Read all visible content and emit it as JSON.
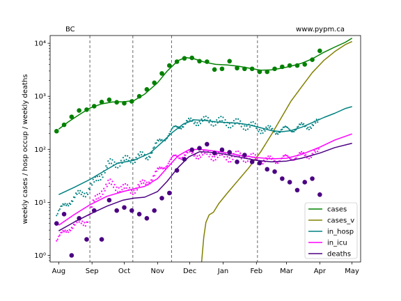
{
  "chart_data": {
    "type": "line",
    "title_left": "BC",
    "title_right": "www.pypm.ca",
    "ylabel": "weekly cases / hosp occup / weekly deaths",
    "xlabel": "",
    "yscale": "log",
    "ylim": [
      0.75,
      14000
    ],
    "xlim": [
      "2020-07-24",
      "2021-05-09"
    ],
    "x_ticks": [
      {
        "label": "Aug",
        "date": "2020-08-01"
      },
      {
        "label": "Sep",
        "date": "2020-09-01"
      },
      {
        "label": "Oct",
        "date": "2020-10-01"
      },
      {
        "label": "Nov",
        "date": "2020-11-01"
      },
      {
        "label": "Dec",
        "date": "2020-12-01"
      },
      {
        "label": "Jan",
        "date": "2021-01-01"
      },
      {
        "label": "Feb",
        "date": "2021-02-01"
      },
      {
        "label": "Mar",
        "date": "2021-03-01"
      },
      {
        "label": "Apr",
        "date": "2021-04-01"
      },
      {
        "label": "May",
        "date": "2021-05-01"
      }
    ],
    "y_ticks": [
      {
        "label": "10⁰",
        "value": 1
      },
      {
        "label": "10¹",
        "value": 10
      },
      {
        "label": "10²",
        "value": 100
      },
      {
        "label": "10³",
        "value": 1000
      },
      {
        "label": "10⁴",
        "value": 10000
      }
    ],
    "vlines": [
      "2020-08-30",
      "2020-10-09",
      "2020-11-14",
      "2021-02-02"
    ],
    "grid": false,
    "legend_position": "lower right",
    "series": [
      {
        "name": "cases",
        "color": "#008000",
        "model": [
          [
            "2020-08-01",
            240
          ],
          [
            "2020-08-10",
            330
          ],
          [
            "2020-08-20",
            450
          ],
          [
            "2020-08-30",
            600
          ],
          [
            "2020-09-10",
            720
          ],
          [
            "2020-09-20",
            780
          ],
          [
            "2020-10-01",
            790
          ],
          [
            "2020-10-10",
            830
          ],
          [
            "2020-10-20",
            1100
          ],
          [
            "2020-11-01",
            1800
          ],
          [
            "2020-11-10",
            3000
          ],
          [
            "2020-11-20",
            4700
          ],
          [
            "2020-11-27",
            5400
          ],
          [
            "2020-12-05",
            5100
          ],
          [
            "2020-12-15",
            4400
          ],
          [
            "2020-12-25",
            4000
          ],
          [
            "2021-01-05",
            3900
          ],
          [
            "2021-01-15",
            3700
          ],
          [
            "2021-01-25",
            3400
          ],
          [
            "2021-02-05",
            3100
          ],
          [
            "2021-02-15",
            3150
          ],
          [
            "2021-02-25",
            3400
          ],
          [
            "2021-03-05",
            3700
          ],
          [
            "2021-03-15",
            4200
          ],
          [
            "2021-03-25",
            5100
          ],
          [
            "2021-04-05",
            6800
          ],
          [
            "2021-04-15",
            8500
          ],
          [
            "2021-04-25",
            10500
          ],
          [
            "2021-05-01",
            12500
          ]
        ],
        "points": [
          [
            "2020-07-30",
            220
          ],
          [
            "2020-08-06",
            290
          ],
          [
            "2020-08-13",
            410
          ],
          [
            "2020-08-20",
            540
          ],
          [
            "2020-08-27",
            560
          ],
          [
            "2020-09-03",
            650
          ],
          [
            "2020-09-10",
            780
          ],
          [
            "2020-09-17",
            860
          ],
          [
            "2020-09-24",
            770
          ],
          [
            "2020-10-01",
            740
          ],
          [
            "2020-10-08",
            800
          ],
          [
            "2020-10-15",
            1000
          ],
          [
            "2020-10-22",
            1350
          ],
          [
            "2020-10-29",
            1800
          ],
          [
            "2020-11-05",
            2700
          ],
          [
            "2020-11-12",
            3800
          ],
          [
            "2020-11-19",
            4500
          ],
          [
            "2020-11-26",
            5200
          ],
          [
            "2020-12-03",
            5300
          ],
          [
            "2020-12-10",
            4600
          ],
          [
            "2020-12-17",
            4500
          ],
          [
            "2020-12-24",
            3200
          ],
          [
            "2020-12-31",
            3300
          ],
          [
            "2021-01-07",
            4600
          ],
          [
            "2021-01-14",
            3400
          ],
          [
            "2021-01-21",
            3300
          ],
          [
            "2021-01-28",
            3300
          ],
          [
            "2021-02-04",
            2900
          ],
          [
            "2021-02-11",
            2900
          ],
          [
            "2021-02-18",
            3300
          ],
          [
            "2021-02-25",
            3600
          ],
          [
            "2021-03-04",
            3800
          ],
          [
            "2021-03-11",
            3800
          ],
          [
            "2021-03-18",
            4000
          ],
          [
            "2021-03-25",
            4900
          ],
          [
            "2021-04-01",
            7200
          ]
        ]
      },
      {
        "name": "cases_v",
        "color": "#808000",
        "model": [
          [
            "2020-12-12",
            0.75
          ],
          [
            "2020-12-14",
            2.2
          ],
          [
            "2020-12-16",
            4.2
          ],
          [
            "2020-12-19",
            5.8
          ],
          [
            "2020-12-23",
            6.5
          ],
          [
            "2020-12-28",
            9.5
          ],
          [
            "2021-01-05",
            15
          ],
          [
            "2021-01-15",
            26
          ],
          [
            "2021-01-25",
            45
          ],
          [
            "2021-02-05",
            90
          ],
          [
            "2021-02-15",
            190
          ],
          [
            "2021-02-25",
            420
          ],
          [
            "2021-03-05",
            800
          ],
          [
            "2021-03-15",
            1500
          ],
          [
            "2021-03-25",
            2800
          ],
          [
            "2021-04-05",
            4800
          ],
          [
            "2021-04-15",
            7000
          ],
          [
            "2021-04-25",
            9500
          ],
          [
            "2021-05-01",
            10800
          ]
        ],
        "points": []
      },
      {
        "name": "in_hosp",
        "color": "#008080",
        "model": [
          [
            "2020-08-01",
            14
          ],
          [
            "2020-08-15",
            19
          ],
          [
            "2020-08-30",
            27
          ],
          [
            "2020-09-15",
            42
          ],
          [
            "2020-09-25",
            55
          ],
          [
            "2020-10-10",
            62
          ],
          [
            "2020-10-25",
            85
          ],
          [
            "2020-11-05",
            135
          ],
          [
            "2020-11-15",
            210
          ],
          [
            "2020-11-25",
            300
          ],
          [
            "2020-12-05",
            360
          ],
          [
            "2020-12-15",
            350
          ],
          [
            "2020-12-25",
            330
          ],
          [
            "2021-01-05",
            320
          ],
          [
            "2021-01-15",
            310
          ],
          [
            "2021-01-25",
            290
          ],
          [
            "2021-02-05",
            255
          ],
          [
            "2021-02-15",
            225
          ],
          [
            "2021-02-25",
            215
          ],
          [
            "2021-03-05",
            225
          ],
          [
            "2021-03-15",
            260
          ],
          [
            "2021-03-25",
            320
          ],
          [
            "2021-04-05",
            400
          ],
          [
            "2021-04-15",
            480
          ],
          [
            "2021-04-25",
            590
          ],
          [
            "2021-05-01",
            640
          ]
        ],
        "points": []
      },
      {
        "name": "in_icu",
        "color": "#ff00ff",
        "model": [
          [
            "2020-08-01",
            3.7
          ],
          [
            "2020-08-15",
            5.8
          ],
          [
            "2020-08-30",
            9
          ],
          [
            "2020-09-15",
            13
          ],
          [
            "2020-09-30",
            16
          ],
          [
            "2020-10-10",
            18
          ],
          [
            "2020-10-20",
            20
          ],
          [
            "2020-11-01",
            28
          ],
          [
            "2020-11-10",
            45
          ],
          [
            "2020-11-20",
            75
          ],
          [
            "2020-11-30",
            98
          ],
          [
            "2020-12-10",
            100
          ],
          [
            "2020-12-20",
            95
          ],
          [
            "2021-01-01",
            88
          ],
          [
            "2021-01-15",
            78
          ],
          [
            "2021-02-01",
            70
          ],
          [
            "2021-02-15",
            66
          ],
          [
            "2021-03-01",
            68
          ],
          [
            "2021-03-15",
            80
          ],
          [
            "2021-04-01",
            110
          ],
          [
            "2021-04-15",
            150
          ],
          [
            "2021-05-01",
            195
          ]
        ],
        "points": []
      },
      {
        "name": "deaths",
        "color": "#4b0082",
        "model": [
          [
            "2020-08-01",
            2.9
          ],
          [
            "2020-08-15",
            4.2
          ],
          [
            "2020-08-30",
            6
          ],
          [
            "2020-09-15",
            8.5
          ],
          [
            "2020-09-30",
            11
          ],
          [
            "2020-10-10",
            12
          ],
          [
            "2020-10-20",
            12.5
          ],
          [
            "2020-11-01",
            16
          ],
          [
            "2020-11-10",
            25
          ],
          [
            "2020-11-20",
            45
          ],
          [
            "2020-11-30",
            72
          ],
          [
            "2020-12-10",
            90
          ],
          [
            "2020-12-20",
            88
          ],
          [
            "2021-01-01",
            82
          ],
          [
            "2021-01-15",
            72
          ],
          [
            "2021-02-01",
            62
          ],
          [
            "2021-02-15",
            58
          ],
          [
            "2021-03-01",
            60
          ],
          [
            "2021-03-15",
            68
          ],
          [
            "2021-04-01",
            85
          ],
          [
            "2021-04-15",
            108
          ],
          [
            "2021-05-01",
            130
          ]
        ],
        "points": [
          [
            "2020-07-30",
            4
          ],
          [
            "2020-08-06",
            6
          ],
          [
            "2020-08-13",
            1
          ],
          [
            "2020-08-20",
            5
          ],
          [
            "2020-08-27",
            2
          ],
          [
            "2020-09-03",
            7
          ],
          [
            "2020-09-10",
            2
          ],
          [
            "2020-09-17",
            11
          ],
          [
            "2020-09-24",
            7
          ],
          [
            "2020-10-01",
            8
          ],
          [
            "2020-10-08",
            7
          ],
          [
            "2020-10-15",
            6
          ],
          [
            "2020-10-22",
            5
          ],
          [
            "2020-10-29",
            7
          ],
          [
            "2020-11-05",
            12
          ],
          [
            "2020-11-12",
            15
          ],
          [
            "2020-11-19",
            40
          ],
          [
            "2020-11-26",
            65
          ],
          [
            "2020-12-03",
            98
          ],
          [
            "2020-12-10",
            105
          ],
          [
            "2020-12-17",
            125
          ],
          [
            "2020-12-24",
            85
          ],
          [
            "2020-12-31",
            98
          ],
          [
            "2021-01-07",
            88
          ],
          [
            "2021-01-14",
            58
          ],
          [
            "2021-01-21",
            78
          ],
          [
            "2021-01-28",
            58
          ],
          [
            "2021-02-04",
            55
          ],
          [
            "2021-02-11",
            42
          ],
          [
            "2021-02-18",
            38
          ],
          [
            "2021-02-25",
            28
          ],
          [
            "2021-03-04",
            24
          ],
          [
            "2021-03-11",
            17
          ],
          [
            "2021-03-18",
            24
          ],
          [
            "2021-03-25",
            28
          ],
          [
            "2021-04-01",
            14
          ]
        ]
      }
    ],
    "scatter_small": [
      {
        "name": "in_hosp_daily",
        "color": "#008080",
        "anchors": [
          [
            "2020-07-30",
            6
          ],
          [
            "2020-08-05",
            8
          ],
          [
            "2020-08-12",
            11
          ],
          [
            "2020-08-20",
            14
          ],
          [
            "2020-08-27",
            16
          ],
          [
            "2020-09-03",
            23
          ],
          [
            "2020-09-10",
            35
          ],
          [
            "2020-09-17",
            52
          ],
          [
            "2020-09-24",
            56
          ],
          [
            "2020-10-01",
            60
          ],
          [
            "2020-10-08",
            65
          ],
          [
            "2020-10-15",
            75
          ],
          [
            "2020-10-22",
            70
          ],
          [
            "2020-10-29",
            110
          ],
          [
            "2020-11-05",
            150
          ],
          [
            "2020-11-12",
            200
          ],
          [
            "2020-11-19",
            260
          ],
          [
            "2020-11-26",
            310
          ],
          [
            "2020-12-03",
            330
          ],
          [
            "2020-12-10",
            345
          ],
          [
            "2020-12-17",
            340
          ],
          [
            "2020-12-24",
            345
          ],
          [
            "2020-12-31",
            330
          ],
          [
            "2021-01-07",
            320
          ],
          [
            "2021-01-14",
            300
          ],
          [
            "2021-01-21",
            290
          ],
          [
            "2021-01-28",
            270
          ],
          [
            "2021-02-04",
            245
          ],
          [
            "2021-02-11",
            235
          ],
          [
            "2021-02-18",
            225
          ],
          [
            "2021-02-25",
            230
          ],
          [
            "2021-03-04",
            240
          ],
          [
            "2021-03-11",
            255
          ],
          [
            "2021-03-18",
            275
          ],
          [
            "2021-03-25",
            290
          ],
          [
            "2021-04-01",
            310
          ]
        ]
      },
      {
        "name": "in_icu_daily",
        "color": "#ff00ff",
        "anchors": [
          [
            "2020-07-30",
            2
          ],
          [
            "2020-08-05",
            2.5
          ],
          [
            "2020-08-12",
            3.5
          ],
          [
            "2020-08-20",
            4
          ],
          [
            "2020-08-27",
            4.5
          ],
          [
            "2020-09-03",
            10
          ],
          [
            "2020-09-10",
            17
          ],
          [
            "2020-09-17",
            22
          ],
          [
            "2020-09-24",
            20
          ],
          [
            "2020-10-01",
            18
          ],
          [
            "2020-10-08",
            17
          ],
          [
            "2020-10-15",
            20
          ],
          [
            "2020-10-22",
            24
          ],
          [
            "2020-10-29",
            32
          ],
          [
            "2020-11-05",
            45
          ],
          [
            "2020-11-12",
            60
          ],
          [
            "2020-11-19",
            72
          ],
          [
            "2020-11-26",
            80
          ],
          [
            "2020-12-03",
            82
          ],
          [
            "2020-12-10",
            80
          ],
          [
            "2020-12-17",
            78
          ],
          [
            "2020-12-24",
            76
          ],
          [
            "2020-12-31",
            75
          ],
          [
            "2021-01-07",
            72
          ],
          [
            "2021-01-14",
            74
          ],
          [
            "2021-01-21",
            72
          ],
          [
            "2021-01-28",
            68
          ],
          [
            "2021-02-04",
            64
          ],
          [
            "2021-02-11",
            62
          ],
          [
            "2021-02-18",
            63
          ],
          [
            "2021-02-25",
            66
          ],
          [
            "2021-03-04",
            70
          ],
          [
            "2021-03-11",
            74
          ],
          [
            "2021-03-18",
            78
          ],
          [
            "2021-03-25",
            82
          ],
          [
            "2021-04-01",
            86
          ]
        ]
      }
    ]
  }
}
